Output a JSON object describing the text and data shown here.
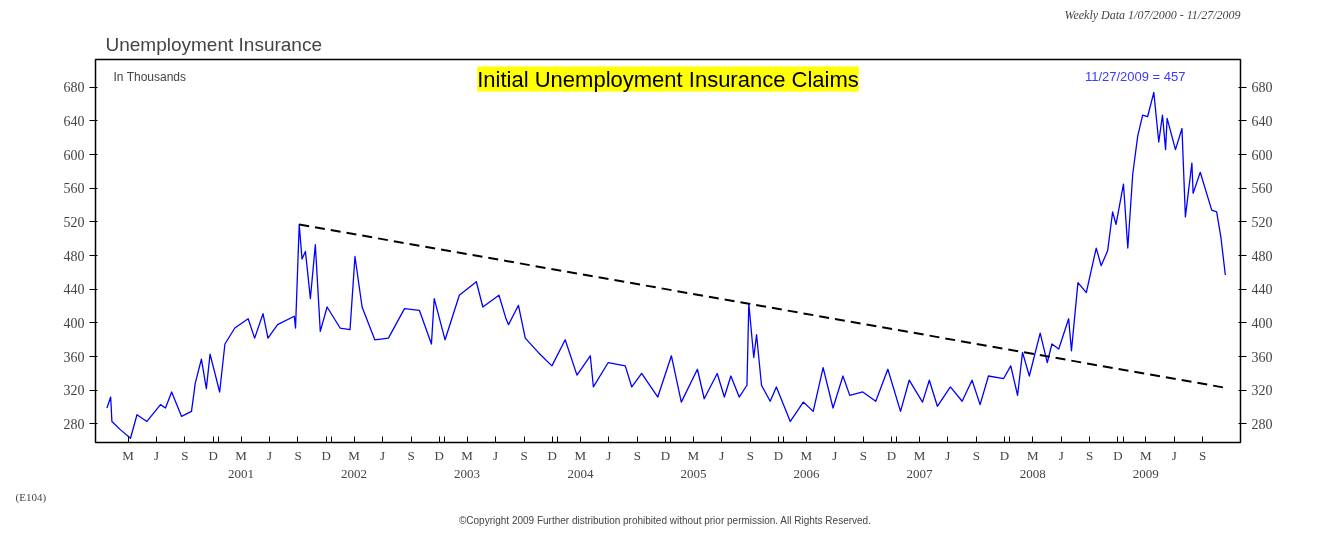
{
  "chart_data": {
    "type": "line",
    "title": "Unemployment Insurance",
    "subtitle": "Initial Unemployment Insurance Claims",
    "annotations": [
      "In Thousands",
      "11/27/2009 = 457",
      "Weekly Data 1/07/2000 - 11/27/2009",
      "(E104)",
      "©Copyright 2009  Further distribution prohibited without prior permission.  All Rights Reserved."
    ],
    "series": [
      {
        "color": "#0000ff",
        "line_style": "solid",
        "x": [
          "2000-01-07",
          "2000-01-19",
          "2000-01-23",
          "2000-02-20",
          "2000-03-23",
          "2000-04-13",
          "2000-05-15",
          "2000-06-28",
          "2000-07-14",
          "2000-08-03",
          "2000-09-04",
          "2000-10-06",
          "2000-10-18",
          "2000-11-07",
          "2000-11-23",
          "2000-12-05",
          "2001-01-05",
          "2001-01-22",
          "2001-02-23",
          "2001-04-07",
          "2001-04-28",
          "2001-05-25",
          "2001-06-10",
          "2001-07-11",
          "2001-09-03",
          "2001-09-07",
          "2001-09-19",
          "2001-09-28",
          "2001-10-09",
          "2001-10-25",
          "2001-11-10",
          "2001-11-26",
          "2001-12-18",
          "2002-01-29",
          "2002-03-02",
          "2002-03-18",
          "2002-04-10",
          "2002-05-21",
          "2002-07-04",
          "2002-08-25",
          "2002-10-12",
          "2002-11-20",
          "2002-11-29",
          "2003-01-03",
          "2003-02-18",
          "2003-04-14",
          "2003-05-05",
          "2003-06-26",
          "2003-07-18",
          "2003-07-27",
          "2003-08-28",
          "2003-09-19",
          "2003-10-31",
          "2003-12-14",
          "2004-01-26",
          "2004-03-04",
          "2004-04-16",
          "2004-04-26",
          "2004-06-13",
          "2004-08-07",
          "2004-08-28",
          "2004-09-29",
          "2004-11-20",
          "2005-01-03",
          "2005-02-04",
          "2005-03-28",
          "2005-04-19",
          "2005-05-31",
          "2005-06-23",
          "2005-07-14",
          "2005-08-10",
          "2005-09-04",
          "2005-09-10",
          "2005-09-26",
          "2005-10-05",
          "2005-10-21",
          "2005-11-18",
          "2005-12-08",
          "2006-01-22",
          "2006-03-05",
          "2006-04-06",
          "2006-05-08",
          "2006-06-09",
          "2006-07-11",
          "2006-08-02",
          "2006-09-13",
          "2006-10-25",
          "2006-12-03",
          "2007-01-13",
          "2007-02-10",
          "2007-03-25",
          "2007-04-16",
          "2007-05-12",
          "2007-06-23",
          "2007-07-31",
          "2007-09-01",
          "2007-09-27",
          "2007-10-24",
          "2007-12-12",
          "2008-01-04",
          "2008-01-26",
          "2008-02-11",
          "2008-03-04",
          "2008-04-08",
          "2008-05-01",
          "2008-05-16",
          "2008-06-07",
          "2008-07-09",
          "2008-07-18",
          "2008-08-08",
          "2008-09-04",
          "2008-10-06",
          "2008-10-22",
          "2008-11-12",
          "2008-11-28",
          "2008-12-09",
          "2009-01-02",
          "2009-01-16",
          "2009-02-01",
          "2009-02-17",
          "2009-03-05",
          "2009-03-21",
          "2009-04-10",
          "2009-04-26",
          "2009-05-08",
          "2009-05-18",
          "2009-05-23",
          "2009-06-19",
          "2009-07-10",
          "2009-07-21",
          "2009-08-11",
          "2009-08-15",
          "2009-09-07",
          "2009-10-14",
          "2009-10-30",
          "2009-11-13",
          "2009-11-27"
        ],
        "values": [
          299,
          312,
          283,
          273,
          263,
          291,
          283,
          303,
          299,
          318,
          289,
          295,
          328,
          357,
          322,
          363,
          318,
          375,
          394,
          405,
          382,
          411,
          382,
          398,
          408,
          394,
          517,
          476,
          485,
          429,
          493,
          390,
          419,
          394,
          392,
          479,
          419,
          380,
          382,
          417,
          415,
          375,
          429,
          380,
          433,
          449,
          419,
          433,
          406,
          398,
          421,
          382,
          365,
          349,
          380,
          338,
          361,
          324,
          353,
          349,
          324,
          340,
          312,
          361,
          306,
          345,
          310,
          340,
          312,
          337,
          312,
          326,
          423,
          359,
          386,
          326,
          307,
          324,
          283,
          306,
          295,
          347,
          299,
          337,
          314,
          318,
          307,
          345,
          295,
          332,
          306,
          332,
          301,
          324,
          307,
          332,
          303,
          337,
          334,
          349,
          314,
          365,
          337,
          388,
          353,
          375,
          369,
          405,
          367,
          448,
          436,
          489,
          468,
          486,
          532,
          517,
          565,
          489,
          577,
          622,
          647,
          645,
          674,
          615,
          647,
          606,
          643,
          606,
          631,
          526,
          590,
          554,
          579,
          534,
          532,
          501,
          457
        ]
      },
      {
        "color": "#000000",
        "line_style": "dashed",
        "x": [
          "2001-09-19",
          "2009-11-27"
        ],
        "values": [
          517,
          323
        ]
      }
    ],
    "xlim": [
      "1999-12-01",
      "2010-01-15"
    ],
    "xticks": [
      {
        "value": "2000-03-15",
        "label": "M"
      },
      {
        "value": "2000-06-15",
        "label": "J"
      },
      {
        "value": "2000-09-15",
        "label": "S"
      },
      {
        "value": "2000-12-15",
        "label": "D"
      },
      {
        "value": "2001-01-01",
        "label": null
      },
      {
        "value": "2001-03-15",
        "label": "M\n2001"
      },
      {
        "value": "2001-06-15",
        "label": "J"
      },
      {
        "value": "2001-09-15",
        "label": "S"
      },
      {
        "value": "2001-12-15",
        "label": "D"
      },
      {
        "value": "2002-01-01",
        "label": null
      },
      {
        "value": "2002-03-15",
        "label": "M\n2002"
      },
      {
        "value": "2002-06-15",
        "label": "J"
      },
      {
        "value": "2002-09-15",
        "label": "S"
      },
      {
        "value": "2002-12-15",
        "label": "D"
      },
      {
        "value": "2003-01-01",
        "label": null
      },
      {
        "value": "2003-03-15",
        "label": "M\n2003"
      },
      {
        "value": "2003-06-15",
        "label": "J"
      },
      {
        "value": "2003-09-15",
        "label": "S"
      },
      {
        "value": "2003-12-15",
        "label": "D"
      },
      {
        "value": "2004-01-01",
        "label": null
      },
      {
        "value": "2004-03-15",
        "label": "M\n2004"
      },
      {
        "value": "2004-06-15",
        "label": "J"
      },
      {
        "value": "2004-09-15",
        "label": "S"
      },
      {
        "value": "2004-12-15",
        "label": "D"
      },
      {
        "value": "2005-01-01",
        "label": null
      },
      {
        "value": "2005-03-15",
        "label": "M\n2005"
      },
      {
        "value": "2005-06-15",
        "label": "J"
      },
      {
        "value": "2005-09-15",
        "label": "S"
      },
      {
        "value": "2005-12-15",
        "label": "D"
      },
      {
        "value": "2006-01-01",
        "label": null
      },
      {
        "value": "2006-03-15",
        "label": "M\n2006"
      },
      {
        "value": "2006-06-15",
        "label": "J"
      },
      {
        "value": "2006-09-15",
        "label": "S"
      },
      {
        "value": "2006-12-15",
        "label": "D"
      },
      {
        "value": "2007-01-01",
        "label": null
      },
      {
        "value": "2007-03-15",
        "label": "M\n2007"
      },
      {
        "value": "2007-06-15",
        "label": "J"
      },
      {
        "value": "2007-09-15",
        "label": "S"
      },
      {
        "value": "2007-12-15",
        "label": "D"
      },
      {
        "value": "2008-01-01",
        "label": null
      },
      {
        "value": "2008-03-15",
        "label": "M\n2008"
      },
      {
        "value": "2008-06-15",
        "label": "J"
      },
      {
        "value": "2008-09-15",
        "label": "S"
      },
      {
        "value": "2008-12-15",
        "label": "D"
      },
      {
        "value": "2009-01-01",
        "label": null
      },
      {
        "value": "2009-03-15",
        "label": "M\n2009"
      },
      {
        "value": "2009-06-15",
        "label": "J"
      },
      {
        "value": "2009-09-15",
        "label": "S"
      }
    ],
    "ylim": [
      258,
      713
    ],
    "yticks": [
      280,
      320,
      360,
      400,
      440,
      480,
      520,
      560,
      600,
      640,
      680
    ],
    "y2lim": [
      258,
      713
    ],
    "y2ticks": [
      280,
      320,
      360,
      400,
      440,
      480,
      520,
      560,
      600,
      640,
      680
    ],
    "grid": false
  }
}
